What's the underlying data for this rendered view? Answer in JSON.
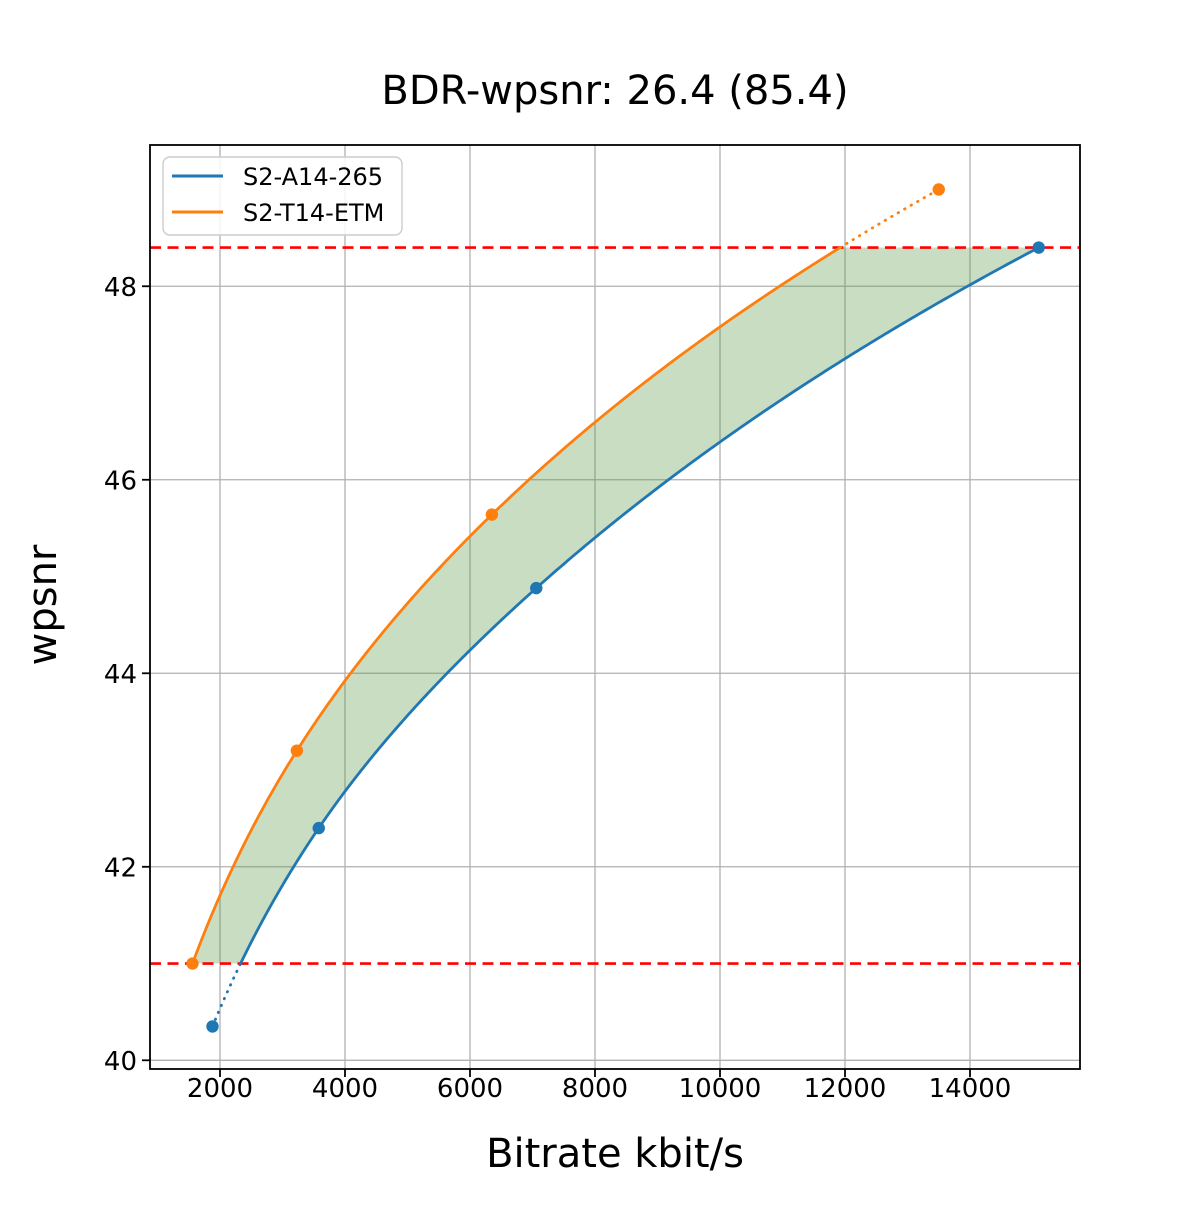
{
  "chart_data": {
    "type": "line",
    "title": "BDR-wpsnr: 26.4 (85.4)",
    "xlabel": "Bitrate kbit/s",
    "ylabel": "wpsnr",
    "xlim": [
      880,
      15760
    ],
    "ylim": [
      39.91,
      49.46
    ],
    "xticks": [
      2000,
      4000,
      6000,
      8000,
      10000,
      12000,
      14000
    ],
    "yticks": [
      40,
      42,
      44,
      46,
      48
    ],
    "grid": true,
    "legend_position": "upper left",
    "series": [
      {
        "name": "S2-A14-265",
        "color": "#1f77b4",
        "x": [
          1880,
          3580,
          7060,
          15100
        ],
        "y": [
          40.35,
          42.4,
          44.88,
          48.4
        ]
      },
      {
        "name": "S2-T14-ETM",
        "color": "#ff7f0e",
        "x": [
          1560,
          3230,
          6350,
          13500
        ],
        "y": [
          41.0,
          43.2,
          45.64,
          49.0
        ]
      }
    ],
    "hlines": {
      "values": [
        41.0,
        48.4
      ],
      "color": "#ff0000",
      "style": "dashed"
    },
    "shaded_region": {
      "color": "#569544",
      "alpha": 0.32,
      "description": "area between the two rate curves clipped between hlines"
    }
  }
}
